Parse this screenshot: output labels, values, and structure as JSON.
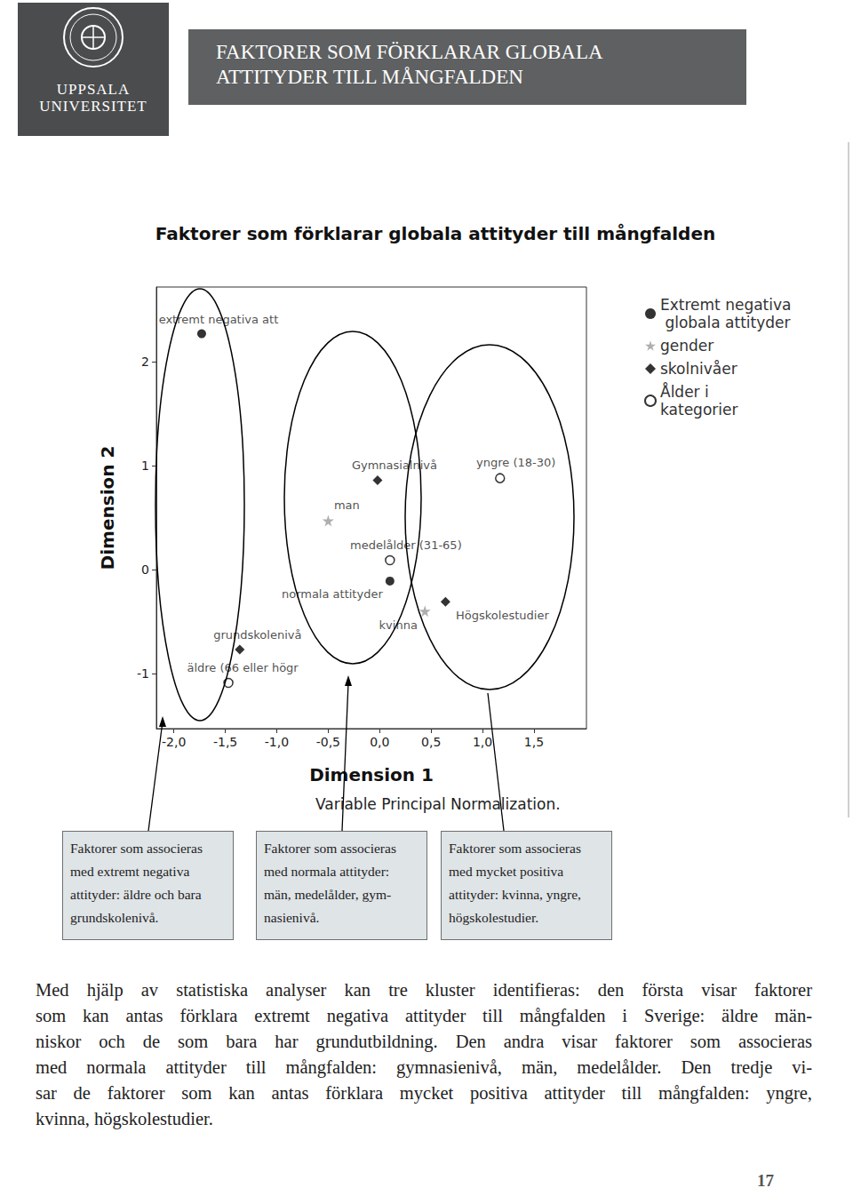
{
  "header": {
    "logo_lines": [
      "UPPSALA",
      "UNIVERSITET"
    ],
    "title_lines": [
      "FAKTORER SOM FÖRKLARAR GLOBALA",
      "ATTITYDER TILL MÅNGFALDEN"
    ]
  },
  "chart_data": {
    "type": "scatter",
    "title": "Faktorer som förklarar globala attityder till mångfalden",
    "x_label": "Dimension 1",
    "y_label": "Dimension 2",
    "note": "Variable Principal Normalization.",
    "xlim": [
      -2.17,
      2.01
    ],
    "xticks": [
      {
        "value": -2,
        "label": "-2,0"
      },
      {
        "value": -1.5,
        "label": "-1,5"
      },
      {
        "value": -1,
        "label": "-1,0"
      },
      {
        "value": -0.5,
        "label": "-0,5"
      },
      {
        "value": 0,
        "label": "0,0"
      },
      {
        "value": 0.5,
        "label": "0,5"
      },
      {
        "value": 1,
        "label": "1,0"
      },
      {
        "value": 1.5,
        "label": "1,5"
      }
    ],
    "ylim": [
      -1.53,
      2.72
    ],
    "yticks": [
      -1,
      0,
      1,
      2
    ],
    "legend": "right",
    "series": [
      {
        "name": "Extremt negativa globala attityder",
        "color": "#000000",
        "marker": "circle",
        "points": [
          {
            "label": "extremt negativa att",
            "x": -1.73,
            "y": 2.27
          },
          {
            "label": "normala attityder",
            "x": 0.1,
            "y": -0.11
          }
        ]
      },
      {
        "name": "gender",
        "color": "#9a9a9a",
        "marker": "star",
        "points": [
          {
            "label": "man",
            "x": -0.5,
            "y": 0.47
          },
          {
            "label": "kvinna",
            "x": 0.44,
            "y": -0.4
          }
        ]
      },
      {
        "name": "skolnivåer",
        "color": "#000000",
        "marker": "diamond",
        "points": [
          {
            "label": "Gymnasialnivå",
            "x": -0.02,
            "y": 0.86
          },
          {
            "label": "grundskolenivå",
            "x": -1.36,
            "y": -0.77
          },
          {
            "label": "Högskolestudier",
            "x": 0.64,
            "y": -0.31
          }
        ]
      },
      {
        "name": "Ålder i kategorier",
        "color": "#000000",
        "marker": "open_circle",
        "points": [
          {
            "label": "yngre (18-30)",
            "x": 1.17,
            "y": 0.88
          },
          {
            "label": "medelålder (31-65)",
            "x": 0.1,
            "y": 0.09
          },
          {
            "label": "äldre (66 eller högr",
            "x": -1.47,
            "y": -1.09
          }
        ]
      }
    ]
  },
  "boxes": [
    {
      "lines": [
        "Faktorer som associeras",
        "med extremt negativa",
        "attityder: äldre och bara",
        "grundskolenivå."
      ]
    },
    {
      "lines": [
        "Faktorer som associeras",
        "med normala attityder:",
        "män, medelålder, gym-",
        "nasienivå."
      ]
    },
    {
      "lines": [
        "Faktorer som associeras",
        "med mycket positiva",
        "attityder: kvinna, yngre,",
        "högskolestudier."
      ]
    }
  ],
  "body": {
    "lines": [
      "Med hjälp av statistiska analyser kan tre kluster identifieras: den första visar faktorer",
      "som kan antas förklara extremt negativa attityder till mångfalden i Sverige: äldre män-",
      "niskor och de som bara har grundutbildning. Den andra visar faktorer som associeras",
      "med normala attityder till mångfalden: gymnasienivå, män, medelålder. Den tredje vi-",
      "sar de faktorer som kan antas förklara mycket positiva attityder till mångfalden: yngre,",
      "kvinna, högskolestudier."
    ]
  },
  "page_number": 17
}
